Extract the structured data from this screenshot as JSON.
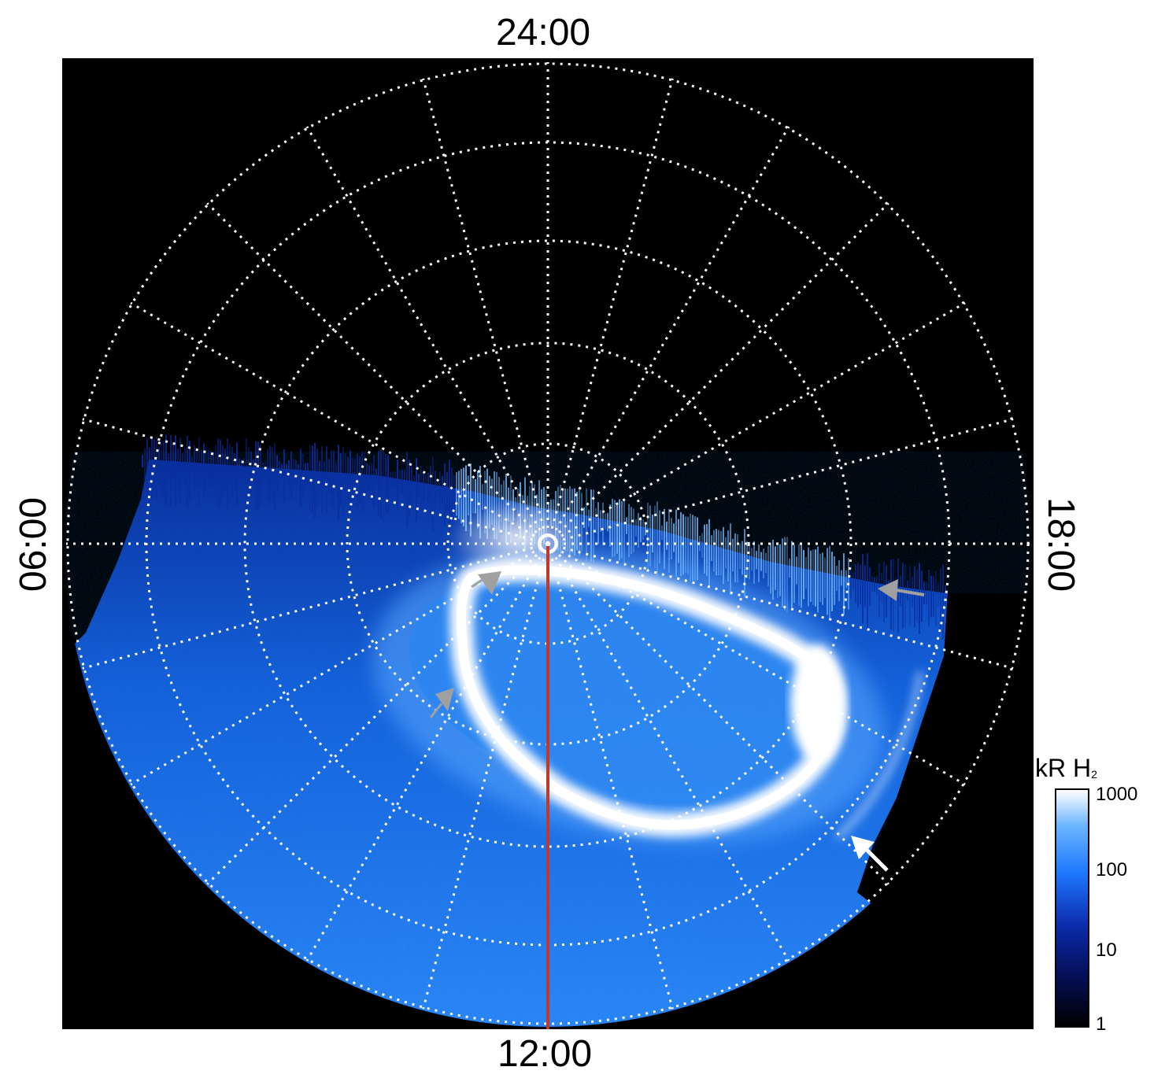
{
  "image": {
    "subject": "Jupiter northern UV aurora, polar projection",
    "colors": {
      "background": "#000000",
      "aurora_dim": "#0a2aa8",
      "aurora_mid": "#1e78ff",
      "aurora_bright": "#ffffff",
      "meridian_line": "#c0392b",
      "grid": "#ffffff",
      "arrow_grey": "#a0a0a0",
      "arrow_white": "#ffffff"
    }
  },
  "local_time_labels": {
    "top": "24:00",
    "bottom": "12:00",
    "left": "06:00",
    "right": "18:00"
  },
  "colorbar": {
    "title_main": "kR H",
    "title_sub": "2",
    "scale": "log",
    "ticks": [
      "1000",
      "100",
      "10",
      "1"
    ]
  }
}
